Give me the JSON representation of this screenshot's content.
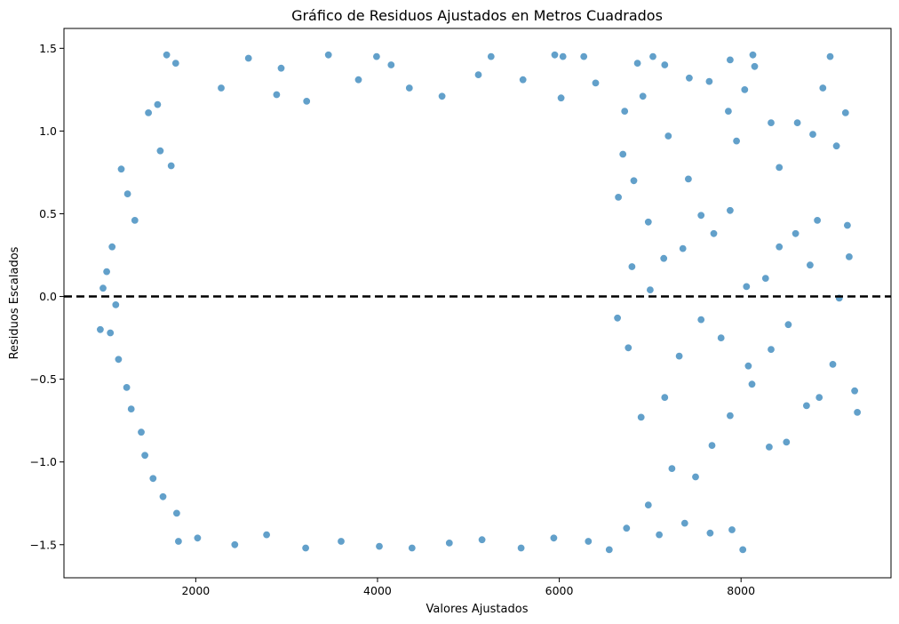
{
  "chart_data": {
    "type": "scatter",
    "title": "Gráfico de Residuos Ajustados en Metros Cuadrados",
    "xlabel": "Valores Ajustados",
    "ylabel": "Residuos Escalados",
    "xlim": [
      550,
      9650
    ],
    "ylim": [
      -1.7,
      1.62
    ],
    "xticks": [
      2000,
      4000,
      6000,
      8000
    ],
    "xtick_labels": [
      "2000",
      "4000",
      "6000",
      "8000"
    ],
    "yticks": [
      -1.5,
      -1.0,
      -0.5,
      0.0,
      0.5,
      1.0,
      1.5
    ],
    "ytick_labels": [
      "−1.5",
      "−1.0",
      "−0.5",
      "0.0",
      "0.5",
      "1.0",
      "1.5"
    ],
    "grid": false,
    "legend": "none",
    "reference_line": {
      "y": 0.0,
      "style": "dashed",
      "color": "#000000"
    },
    "point_color": "#1f77b4",
    "point_edge_color": "#ffffff",
    "point_alpha": 0.7,
    "series": [
      {
        "points": [
          [
            1680,
            1.46
          ],
          [
            1780,
            1.41
          ],
          [
            2580,
            1.44
          ],
          [
            2940,
            1.38
          ],
          [
            3460,
            1.46
          ],
          [
            3990,
            1.45
          ],
          [
            4150,
            1.4
          ],
          [
            5250,
            1.45
          ],
          [
            5950,
            1.46
          ],
          [
            6040,
            1.45
          ],
          [
            6270,
            1.45
          ],
          [
            6860,
            1.41
          ],
          [
            7030,
            1.45
          ],
          [
            8130,
            1.46
          ],
          [
            8980,
            1.45
          ],
          [
            7880,
            1.43
          ],
          [
            1480,
            1.11
          ],
          [
            1580,
            1.16
          ],
          [
            1610,
            0.88
          ],
          [
            1730,
            0.79
          ],
          [
            2280,
            1.26
          ],
          [
            2890,
            1.22
          ],
          [
            3220,
            1.18
          ],
          [
            3790,
            1.31
          ],
          [
            4350,
            1.26
          ],
          [
            4710,
            1.21
          ],
          [
            5110,
            1.34
          ],
          [
            5600,
            1.31
          ],
          [
            6020,
            1.2
          ],
          [
            6400,
            1.29
          ],
          [
            6720,
            1.12
          ],
          [
            6920,
            1.21
          ],
          [
            7160,
            1.4
          ],
          [
            7430,
            1.32
          ],
          [
            7650,
            1.3
          ],
          [
            7860,
            1.12
          ],
          [
            8040,
            1.25
          ],
          [
            8150,
            1.39
          ],
          [
            8330,
            1.05
          ],
          [
            8620,
            1.05
          ],
          [
            8790,
            0.98
          ],
          [
            8900,
            1.26
          ],
          [
            9150,
            1.11
          ],
          [
            9050,
            0.91
          ],
          [
            8420,
            0.78
          ],
          [
            7950,
            0.94
          ],
          [
            7420,
            0.71
          ],
          [
            7200,
            0.97
          ],
          [
            1180,
            0.77
          ],
          [
            1250,
            0.62
          ],
          [
            1330,
            0.46
          ],
          [
            1080,
            0.3
          ],
          [
            1020,
            0.15
          ],
          [
            980,
            0.05
          ],
          [
            1120,
            -0.05
          ],
          [
            1060,
            -0.22
          ],
          [
            950,
            -0.2
          ],
          [
            1150,
            -0.38
          ],
          [
            1240,
            -0.55
          ],
          [
            1290,
            -0.68
          ],
          [
            1400,
            -0.82
          ],
          [
            1440,
            -0.96
          ],
          [
            1530,
            -1.1
          ],
          [
            1640,
            -1.21
          ],
          [
            1790,
            -1.31
          ],
          [
            1810,
            -1.48
          ],
          [
            2020,
            -1.46
          ],
          [
            2430,
            -1.5
          ],
          [
            2780,
            -1.44
          ],
          [
            3210,
            -1.52
          ],
          [
            3600,
            -1.48
          ],
          [
            4020,
            -1.51
          ],
          [
            4380,
            -1.52
          ],
          [
            4790,
            -1.49
          ],
          [
            5150,
            -1.47
          ],
          [
            5580,
            -1.52
          ],
          [
            5940,
            -1.46
          ],
          [
            6320,
            -1.48
          ],
          [
            6550,
            -1.53
          ],
          [
            6740,
            -1.4
          ],
          [
            7100,
            -1.44
          ],
          [
            7380,
            -1.37
          ],
          [
            7660,
            -1.43
          ],
          [
            7900,
            -1.41
          ],
          [
            8020,
            -1.53
          ],
          [
            6980,
            -1.26
          ],
          [
            7240,
            -1.04
          ],
          [
            7500,
            -1.09
          ],
          [
            7680,
            -0.9
          ],
          [
            7880,
            -0.72
          ],
          [
            8120,
            -0.53
          ],
          [
            8310,
            -0.91
          ],
          [
            8500,
            -0.88
          ],
          [
            8720,
            -0.66
          ],
          [
            8860,
            -0.61
          ],
          [
            9010,
            -0.41
          ],
          [
            9250,
            -0.57
          ],
          [
            9280,
            -0.7
          ],
          [
            8420,
            0.3
          ],
          [
            8600,
            0.38
          ],
          [
            8840,
            0.46
          ],
          [
            9170,
            0.43
          ],
          [
            9190,
            0.24
          ],
          [
            8760,
            0.19
          ],
          [
            8270,
            0.11
          ],
          [
            8060,
            0.06
          ],
          [
            7880,
            0.52
          ],
          [
            7700,
            0.38
          ],
          [
            7560,
            0.49
          ],
          [
            7360,
            0.29
          ],
          [
            7150,
            0.23
          ],
          [
            6980,
            0.45
          ],
          [
            8520,
            -0.17
          ],
          [
            8330,
            -0.32
          ],
          [
            8080,
            -0.42
          ],
          [
            7780,
            -0.25
          ],
          [
            7560,
            -0.14
          ],
          [
            7320,
            -0.36
          ],
          [
            7160,
            -0.61
          ],
          [
            6900,
            -0.73
          ],
          [
            6760,
            -0.31
          ],
          [
            6640,
            -0.13
          ],
          [
            7000,
            0.04
          ],
          [
            6800,
            0.18
          ],
          [
            6650,
            0.6
          ],
          [
            6700,
            0.86
          ],
          [
            6820,
            0.7
          ],
          [
            9080,
            -0.01
          ]
        ]
      }
    ]
  }
}
